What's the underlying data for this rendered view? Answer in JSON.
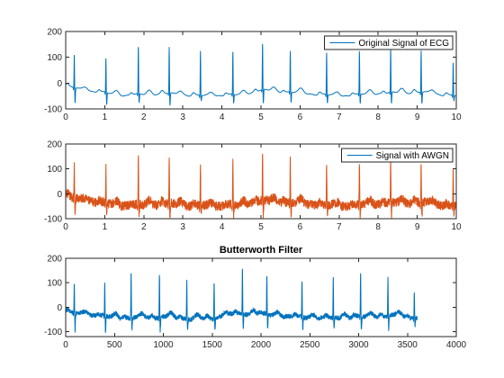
{
  "chart_data": [
    {
      "type": "line",
      "title": "",
      "xlabel": "",
      "ylabel": "",
      "xlim": [
        0,
        10
      ],
      "ylim": [
        -100,
        200
      ],
      "xticks": [
        0,
        1,
        2,
        3,
        4,
        5,
        6,
        7,
        8,
        9,
        10
      ],
      "yticks": [
        -100,
        0,
        100,
        200
      ],
      "grid": false,
      "legend_position": "top-right",
      "series": [
        {
          "name": "Original Signal of ECG",
          "color": "#0072BD",
          "style": "ecg-clean",
          "beat_times": [
            0.22,
            1.03,
            1.86,
            2.65,
            3.45,
            4.28,
            5.04,
            5.75,
            6.68,
            7.52,
            8.32,
            9.1,
            9.92
          ],
          "r_peak_values": [
            110,
            95,
            142,
            138,
            123,
            120,
            155,
            124,
            118,
            122,
            132,
            126,
            78
          ],
          "s_trough_values": [
            -78,
            -85,
            -80,
            -90,
            -70,
            -80,
            -82,
            -76,
            -78,
            -82,
            -84,
            -80,
            -70
          ],
          "baseline_points": [
            [
              0,
              -12
            ],
            [
              0.5,
              -28
            ],
            [
              1.5,
              -48
            ],
            [
              2.5,
              -40
            ],
            [
              3.5,
              -50
            ],
            [
              4.5,
              -45
            ],
            [
              5,
              -28
            ],
            [
              6,
              -38
            ],
            [
              7,
              -50
            ],
            [
              8,
              -40
            ],
            [
              9,
              -35
            ],
            [
              10,
              -50
            ]
          ]
        }
      ]
    },
    {
      "type": "line",
      "title": "",
      "xlabel": "",
      "ylabel": "",
      "xlim": [
        0,
        10
      ],
      "ylim": [
        -100,
        200
      ],
      "xticks": [
        0,
        1,
        2,
        3,
        4,
        5,
        6,
        7,
        8,
        9,
        10
      ],
      "yticks": [
        -100,
        0,
        100,
        200
      ],
      "grid": false,
      "legend_position": "top-right",
      "series": [
        {
          "name": "Signal with AWGN",
          "color": "#D95319",
          "legend_color": "#0072BD",
          "style": "ecg-noisy",
          "noise_amplitude": 18,
          "beat_times": [
            0.22,
            1.03,
            1.86,
            2.65,
            3.45,
            4.28,
            5.04,
            5.75,
            6.68,
            7.52,
            8.32,
            9.1,
            9.92
          ],
          "r_peak_values": [
            118,
            105,
            150,
            148,
            128,
            125,
            172,
            133,
            127,
            131,
            140,
            128,
            92
          ],
          "s_trough_values": [
            -92,
            -96,
            -90,
            -98,
            -84,
            -90,
            -95,
            -88,
            -92,
            -96,
            -96,
            -92,
            -82
          ],
          "baseline_points": [
            [
              0,
              -10
            ],
            [
              0.5,
              -28
            ],
            [
              1.5,
              -48
            ],
            [
              2.5,
              -40
            ],
            [
              3.5,
              -50
            ],
            [
              4.5,
              -45
            ],
            [
              5,
              -28
            ],
            [
              6,
              -38
            ],
            [
              7,
              -50
            ],
            [
              8,
              -40
            ],
            [
              9,
              -35
            ],
            [
              10,
              -50
            ]
          ]
        }
      ]
    },
    {
      "type": "line",
      "title": "Butterworth Filter",
      "xlabel": "",
      "ylabel": "",
      "xlim": [
        0,
        4000
      ],
      "ylim": [
        -120,
        200
      ],
      "xticks": [
        0,
        500,
        1000,
        1500,
        2000,
        2500,
        3000,
        3500,
        4000
      ],
      "yticks": [
        -100,
        0,
        100,
        200
      ],
      "grid": false,
      "legend_position": "none",
      "series": [
        {
          "name": "",
          "color": "#0072BD",
          "style": "ecg-filtered",
          "noise_amplitude": 9,
          "x_end": 3600,
          "beat_times": [
            88,
            400,
            670,
            960,
            1240,
            1520,
            1810,
            2060,
            2420,
            2740,
            3020,
            3300,
            3570
          ],
          "r_peak_values": [
            95,
            95,
            148,
            142,
            115,
            112,
            160,
            130,
            115,
            120,
            145,
            122,
            58
          ],
          "s_trough_values": [
            -95,
            -110,
            -90,
            -100,
            -85,
            -95,
            -92,
            -88,
            -90,
            -95,
            -100,
            -95,
            -80
          ],
          "baseline_points": [
            [
              0,
              -20
            ],
            [
              200,
              -30
            ],
            [
              600,
              -45
            ],
            [
              1000,
              -40
            ],
            [
              1400,
              -50
            ],
            [
              1800,
              -25
            ],
            [
              2200,
              -35
            ],
            [
              2600,
              -45
            ],
            [
              3000,
              -40
            ],
            [
              3400,
              -35
            ],
            [
              3600,
              -45
            ]
          ]
        }
      ]
    }
  ]
}
